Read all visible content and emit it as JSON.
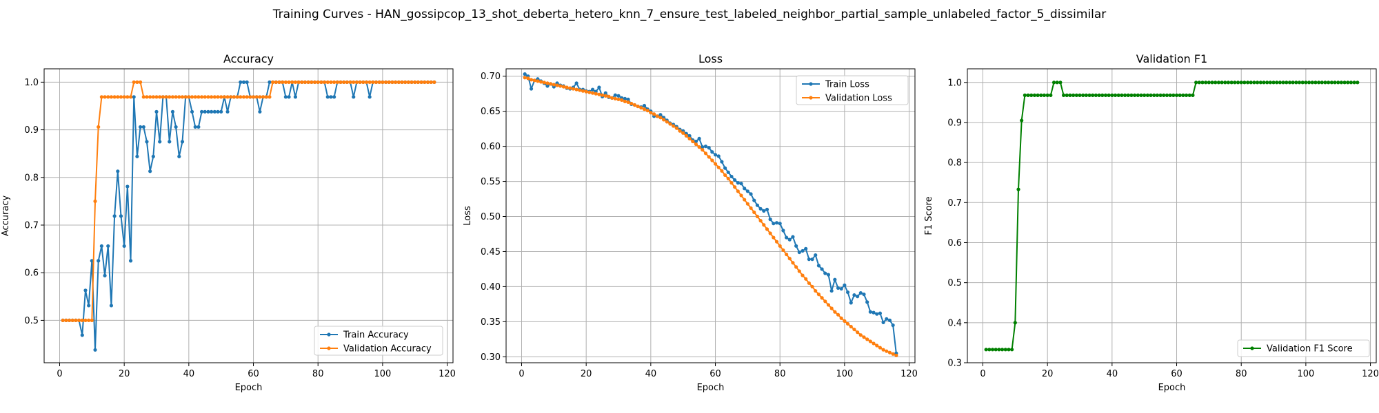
{
  "suptitle": "Training Curves - HAN_gossipcop_13_shot_deberta_hetero_knn_7_ensure_test_labeled_neighbor_partial_sample_unlabeled_factor_5_dissimilar",
  "colors": {
    "train": "#1f77b4",
    "validation": "#ff7f0e",
    "f1": "#008000",
    "grid": "#b0b0b0"
  },
  "chart_data": [
    {
      "type": "line",
      "title": "Accuracy",
      "xlabel": "Epoch",
      "ylabel": "Accuracy",
      "xlim": [
        -4.8,
        121.8
      ],
      "ylim": [
        0.411,
        1.028
      ],
      "xticks": [
        0,
        20,
        40,
        60,
        80,
        100,
        120
      ],
      "yticks": [
        0.5,
        0.6,
        0.7,
        0.8,
        0.9,
        1.0
      ],
      "ytick_labels": [
        "0.5",
        "0.6",
        "0.7",
        "0.8",
        "0.9",
        "1.0"
      ],
      "grid": true,
      "legend": "lower-right",
      "series": [
        {
          "name": "Train Accuracy",
          "color": "#1f77b4",
          "values": [
            0.5,
            0.5,
            0.5,
            0.5,
            0.5,
            0.5,
            0.469,
            0.563,
            0.531,
            0.625,
            0.438,
            0.625,
            0.656,
            0.594,
            0.656,
            0.531,
            0.719,
            0.813,
            0.719,
            0.656,
            0.781,
            0.625,
            0.969,
            0.844,
            0.906,
            0.906,
            0.875,
            0.813,
            0.844,
            0.938,
            0.875,
            0.969,
            0.969,
            0.875,
            0.938,
            0.906,
            0.844,
            0.875,
            0.969,
            0.969,
            0.938,
            0.906,
            0.906,
            0.938,
            0.938,
            0.938,
            0.938,
            0.938,
            0.938,
            0.938,
            0.969,
            0.938,
            0.969,
            0.969,
            0.969,
            1.0,
            1.0,
            1.0,
            0.969,
            0.969,
            0.969,
            0.938,
            0.969,
            0.969,
            1.0,
            1.0,
            1.0,
            1.0,
            1.0,
            0.969,
            0.969,
            1.0,
            0.969,
            1.0,
            1.0,
            1.0,
            1.0,
            1.0,
            1.0,
            1.0,
            1.0,
            1.0,
            0.969,
            0.969,
            0.969,
            1.0,
            1.0,
            1.0,
            1.0,
            1.0,
            0.969,
            1.0,
            1.0,
            1.0,
            1.0,
            0.969,
            1.0,
            1.0,
            1.0,
            1.0,
            1.0,
            1.0,
            1.0,
            1.0,
            1.0,
            1.0,
            1.0,
            1.0,
            1.0,
            1.0,
            1.0,
            1.0,
            1.0,
            1.0,
            1.0,
            1.0
          ]
        },
        {
          "name": "Validation Accuracy",
          "color": "#ff7f0e",
          "values": [
            0.5,
            0.5,
            0.5,
            0.5,
            0.5,
            0.5,
            0.5,
            0.5,
            0.5,
            0.5,
            0.75,
            0.906,
            0.969,
            0.969,
            0.969,
            0.969,
            0.969,
            0.969,
            0.969,
            0.969,
            0.969,
            0.969,
            1.0,
            1.0,
            1.0,
            0.969,
            0.969,
            0.969,
            0.969,
            0.969,
            0.969,
            0.969,
            0.969,
            0.969,
            0.969,
            0.969,
            0.969,
            0.969,
            0.969,
            0.969,
            0.969,
            0.969,
            0.969,
            0.969,
            0.969,
            0.969,
            0.969,
            0.969,
            0.969,
            0.969,
            0.969,
            0.969,
            0.969,
            0.969,
            0.969,
            0.969,
            0.969,
            0.969,
            0.969,
            0.969,
            0.969,
            0.969,
            0.969,
            0.969,
            0.969,
            1.0,
            1.0,
            1.0,
            1.0,
            1.0,
            1.0,
            1.0,
            1.0,
            1.0,
            1.0,
            1.0,
            1.0,
            1.0,
            1.0,
            1.0,
            1.0,
            1.0,
            1.0,
            1.0,
            1.0,
            1.0,
            1.0,
            1.0,
            1.0,
            1.0,
            1.0,
            1.0,
            1.0,
            1.0,
            1.0,
            1.0,
            1.0,
            1.0,
            1.0,
            1.0,
            1.0,
            1.0,
            1.0,
            1.0,
            1.0,
            1.0,
            1.0,
            1.0,
            1.0,
            1.0,
            1.0,
            1.0,
            1.0,
            1.0,
            1.0,
            1.0
          ]
        }
      ]
    },
    {
      "type": "line",
      "title": "Loss",
      "xlabel": "Epoch",
      "ylabel": "Loss",
      "xlim": [
        -4.8,
        121.8
      ],
      "ylim": [
        0.2915,
        0.7105
      ],
      "xticks": [
        0,
        20,
        40,
        60,
        80,
        100,
        120
      ],
      "yticks": [
        0.3,
        0.35,
        0.4,
        0.45,
        0.5,
        0.55,
        0.6,
        0.65,
        0.7
      ],
      "ytick_labels": [
        "0.30",
        "0.35",
        "0.40",
        "0.45",
        "0.50",
        "0.55",
        "0.60",
        "0.65",
        "0.70"
      ],
      "grid": true,
      "legend": "upper-right",
      "series": [
        {
          "name": "Train Loss",
          "color": "#1f77b4",
          "values": [
            0.703,
            0.7,
            0.682,
            0.694,
            0.696,
            0.693,
            0.69,
            0.686,
            0.689,
            0.685,
            0.69,
            0.687,
            0.686,
            0.683,
            0.682,
            0.684,
            0.69,
            0.681,
            0.681,
            0.679,
            0.678,
            0.681,
            0.678,
            0.684,
            0.671,
            0.676,
            0.67,
            0.669,
            0.673,
            0.672,
            0.669,
            0.668,
            0.667,
            0.66,
            0.659,
            0.657,
            0.656,
            0.658,
            0.653,
            0.65,
            0.643,
            0.643,
            0.645,
            0.641,
            0.637,
            0.633,
            0.631,
            0.628,
            0.624,
            0.622,
            0.618,
            0.615,
            0.609,
            0.607,
            0.611,
            0.599,
            0.6,
            0.598,
            0.592,
            0.588,
            0.586,
            0.578,
            0.569,
            0.563,
            0.557,
            0.552,
            0.548,
            0.547,
            0.54,
            0.536,
            0.532,
            0.523,
            0.516,
            0.511,
            0.508,
            0.51,
            0.496,
            0.49,
            0.491,
            0.49,
            0.48,
            0.47,
            0.467,
            0.471,
            0.458,
            0.449,
            0.451,
            0.454,
            0.439,
            0.439,
            0.445,
            0.43,
            0.425,
            0.419,
            0.417,
            0.394,
            0.41,
            0.398,
            0.397,
            0.402,
            0.392,
            0.377,
            0.388,
            0.386,
            0.391,
            0.389,
            0.378,
            0.364,
            0.363,
            0.361,
            0.362,
            0.349,
            0.354,
            0.352,
            0.345,
            0.305
          ]
        },
        {
          "name": "Validation Loss",
          "color": "#ff7f0e",
          "values": [
            0.698,
            0.697,
            0.695,
            0.694,
            0.693,
            0.692,
            0.691,
            0.69,
            0.689,
            0.688,
            0.687,
            0.686,
            0.685,
            0.684,
            0.683,
            0.682,
            0.681,
            0.68,
            0.679,
            0.678,
            0.677,
            0.676,
            0.675,
            0.674,
            0.673,
            0.672,
            0.671,
            0.669,
            0.668,
            0.667,
            0.666,
            0.664,
            0.663,
            0.661,
            0.659,
            0.657,
            0.655,
            0.653,
            0.651,
            0.648,
            0.646,
            0.643,
            0.641,
            0.638,
            0.635,
            0.632,
            0.629,
            0.626,
            0.622,
            0.619,
            0.615,
            0.611,
            0.607,
            0.603,
            0.599,
            0.595,
            0.59,
            0.585,
            0.58,
            0.575,
            0.57,
            0.565,
            0.559,
            0.554,
            0.548,
            0.542,
            0.536,
            0.53,
            0.524,
            0.518,
            0.512,
            0.506,
            0.5,
            0.494,
            0.488,
            0.482,
            0.476,
            0.47,
            0.464,
            0.458,
            0.452,
            0.446,
            0.44,
            0.434,
            0.428,
            0.422,
            0.416,
            0.411,
            0.405,
            0.4,
            0.394,
            0.389,
            0.384,
            0.379,
            0.374,
            0.369,
            0.364,
            0.36,
            0.355,
            0.351,
            0.347,
            0.343,
            0.339,
            0.335,
            0.331,
            0.328,
            0.325,
            0.322,
            0.319,
            0.316,
            0.313,
            0.31,
            0.308,
            0.306,
            0.304,
            0.302
          ]
        }
      ]
    },
    {
      "type": "line",
      "title": "Validation F1",
      "xlabel": "Epoch",
      "ylabel": "F1 Score",
      "xlim": [
        -4.8,
        121.8
      ],
      "ylim": [
        0.3,
        1.034
      ],
      "xticks": [
        0,
        20,
        40,
        60,
        80,
        100,
        120
      ],
      "yticks": [
        0.3,
        0.4,
        0.5,
        0.6,
        0.7,
        0.8,
        0.9,
        1.0
      ],
      "ytick_labels": [
        "0.3",
        "0.4",
        "0.5",
        "0.6",
        "0.7",
        "0.8",
        "0.9",
        "1.0"
      ],
      "grid": true,
      "legend": "lower-right",
      "series": [
        {
          "name": "Validation F1 Score",
          "color": "#008000",
          "values": [
            0.333,
            0.333,
            0.333,
            0.333,
            0.333,
            0.333,
            0.333,
            0.333,
            0.333,
            0.4,
            0.733,
            0.905,
            0.968,
            0.968,
            0.968,
            0.968,
            0.968,
            0.968,
            0.968,
            0.968,
            0.968,
            1.0,
            1.0,
            1.0,
            0.968,
            0.968,
            0.968,
            0.968,
            0.968,
            0.968,
            0.968,
            0.968,
            0.968,
            0.968,
            0.968,
            0.968,
            0.968,
            0.968,
            0.968,
            0.968,
            0.968,
            0.968,
            0.968,
            0.968,
            0.968,
            0.968,
            0.968,
            0.968,
            0.968,
            0.968,
            0.968,
            0.968,
            0.968,
            0.968,
            0.968,
            0.968,
            0.968,
            0.968,
            0.968,
            0.968,
            0.968,
            0.968,
            0.968,
            0.968,
            0.968,
            1.0,
            1.0,
            1.0,
            1.0,
            1.0,
            1.0,
            1.0,
            1.0,
            1.0,
            1.0,
            1.0,
            1.0,
            1.0,
            1.0,
            1.0,
            1.0,
            1.0,
            1.0,
            1.0,
            1.0,
            1.0,
            1.0,
            1.0,
            1.0,
            1.0,
            1.0,
            1.0,
            1.0,
            1.0,
            1.0,
            1.0,
            1.0,
            1.0,
            1.0,
            1.0,
            1.0,
            1.0,
            1.0,
            1.0,
            1.0,
            1.0,
            1.0,
            1.0,
            1.0,
            1.0,
            1.0,
            1.0,
            1.0,
            1.0,
            1.0,
            1.0
          ]
        }
      ]
    }
  ]
}
